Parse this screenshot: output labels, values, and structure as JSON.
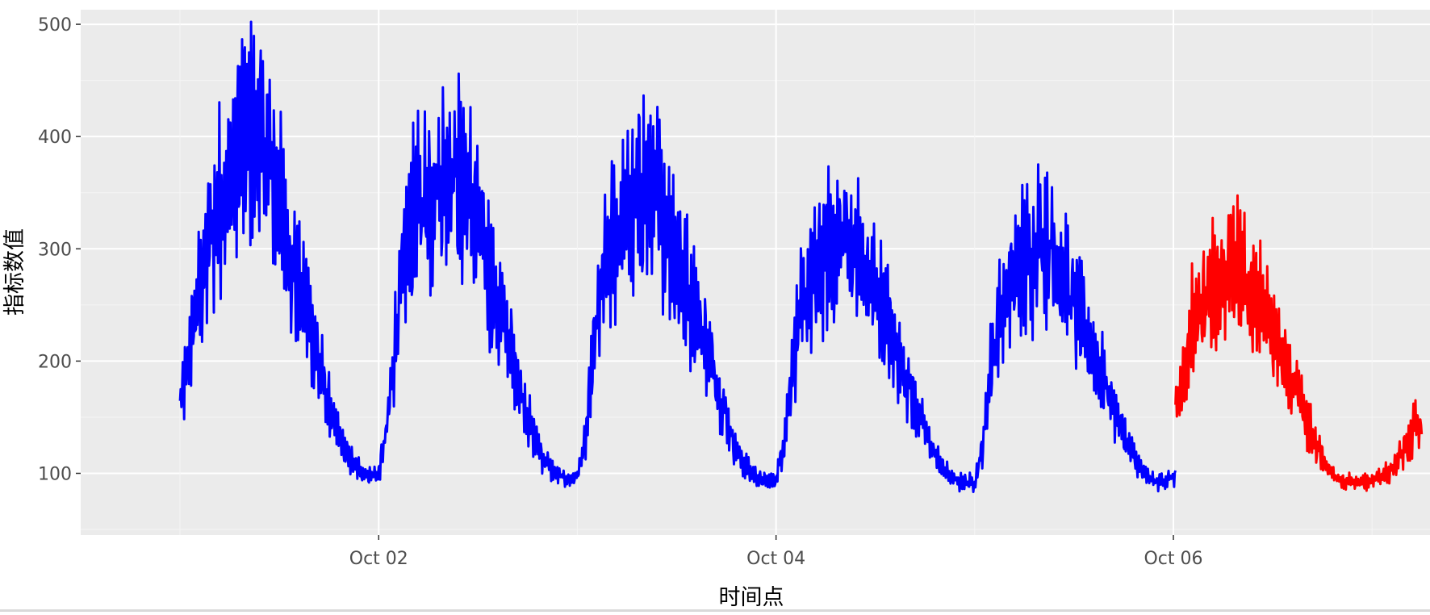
{
  "chart_data": {
    "type": "line",
    "title": "",
    "xlabel": "时间点",
    "ylabel": "指标数值",
    "x_range": [
      "2024-09-30T12:00",
      "2024-10-07T07:00"
    ],
    "ylim": [
      45,
      513
    ],
    "x_tick_labels": [
      "Oct 02",
      "Oct 04",
      "Oct 06"
    ],
    "x_tick_values": [
      "2024-10-02T00:00",
      "2024-10-04T00:00",
      "2024-10-06T00:00"
    ],
    "y_ticks": [
      100,
      200,
      300,
      400,
      500
    ],
    "grid": true,
    "background": "#ebebeb",
    "legend": "none",
    "series": [
      {
        "color": "#0000ff",
        "x_start": "2024-10-01T00:00",
        "x_end": "2024-10-06T00:15",
        "hourly_values": [
          160,
          200,
          250,
          290,
          320,
          345,
          365,
          385,
          400,
          405,
          395,
          375,
          345,
          305,
          275,
          250,
          225,
          190,
          160,
          135,
          118,
          108,
          102,
          98,
          100,
          140,
          220,
          280,
          320,
          340,
          350,
          360,
          370,
          375,
          360,
          345,
          320,
          290,
          260,
          235,
          210,
          180,
          150,
          128,
          112,
          102,
          97,
          95,
          98,
          130,
          210,
          270,
          300,
          318,
          330,
          342,
          355,
          350,
          335,
          318,
          295,
          270,
          248,
          228,
          205,
          178,
          150,
          125,
          110,
          100,
          95,
          92,
          95,
          130,
          200,
          245,
          262,
          278,
          292,
          305,
          312,
          305,
          292,
          278,
          262,
          242,
          222,
          202,
          180,
          158,
          138,
          120,
          106,
          97,
          92,
          92,
          92,
          125,
          200,
          240,
          262,
          278,
          288,
          298,
          312,
          302,
          288,
          270,
          250,
          230,
          212,
          195,
          175,
          155,
          135,
          118,
          104,
          96,
          92,
          94,
          97
        ]
      },
      {
        "color": "#ff0000",
        "x_start": "2024-10-06T00:15",
        "x_end": "2024-10-07T06:00",
        "hourly_values": [
          150,
          190,
          230,
          245,
          258,
          270,
          282,
          290,
          280,
          265,
          250,
          235,
          218,
          202,
          185,
          165,
          145,
          125,
          110,
          100,
          94,
          92,
          90,
          92,
          95,
          98,
          102,
          112,
          125,
          145,
          150
        ]
      }
    ]
  }
}
